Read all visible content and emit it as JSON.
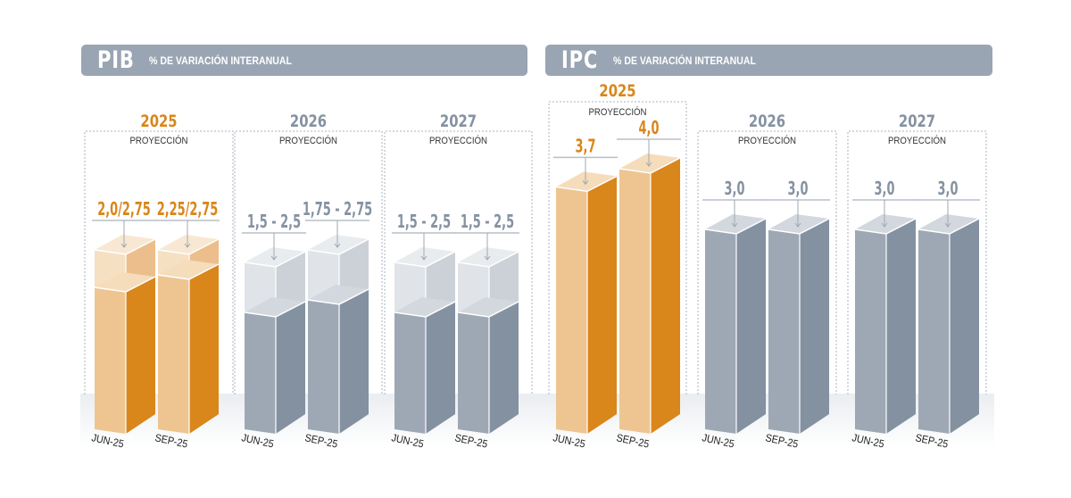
{
  "chart_data": [
    {
      "type": "bar",
      "title": "PIB",
      "subtitle": "% DE VARIACIÓN INTERANUAL",
      "panels": [
        {
          "year": "2025",
          "label": "PROYECCIÓN",
          "highlight": true,
          "categories": [
            "JUN-25",
            "SEP-25"
          ],
          "value_labels": [
            "2,0/2,75",
            "2,25/2,75"
          ],
          "range_low": [
            2.0,
            2.25
          ],
          "range_high": [
            2.75,
            2.75
          ]
        },
        {
          "year": "2026",
          "label": "PROYECCIÓN",
          "highlight": false,
          "categories": [
            "JUN-25",
            "SEP-25"
          ],
          "value_labels": [
            "1,5 - 2,5",
            "1,75 - 2,75"
          ],
          "range_low": [
            1.5,
            1.75
          ],
          "range_high": [
            2.5,
            2.75
          ]
        },
        {
          "year": "2027",
          "label": "PROYECCIÓN",
          "highlight": false,
          "categories": [
            "JUN-25",
            "SEP-25"
          ],
          "value_labels": [
            "1,5 - 2,5",
            "1,5 - 2,5"
          ],
          "range_low": [
            1.5,
            1.5
          ],
          "range_high": [
            2.5,
            2.5
          ]
        }
      ]
    },
    {
      "type": "bar",
      "title": "IPC",
      "subtitle": "% DE VARIACIÓN INTERANUAL",
      "panels": [
        {
          "year": "2025",
          "label": "PROYECCIÓN",
          "highlight": true,
          "categories": [
            "JUN-25",
            "SEP-25"
          ],
          "value_labels": [
            "3,7",
            "4,0"
          ],
          "values": [
            3.7,
            4.0
          ]
        },
        {
          "year": "2026",
          "label": "PROYECCIÓN",
          "highlight": false,
          "categories": [
            "JUN-25",
            "SEP-25"
          ],
          "value_labels": [
            "3,0",
            "3,0"
          ],
          "values": [
            3.0,
            3.0
          ]
        },
        {
          "year": "2027",
          "label": "PROYECCIÓN",
          "highlight": false,
          "categories": [
            "JUN-25",
            "SEP-25"
          ],
          "value_labels": [
            "3,0",
            "3,0"
          ],
          "values": [
            3.0,
            3.0
          ]
        }
      ]
    }
  ],
  "colors": {
    "header": "#9aa5b3",
    "orange_front": "#eec591",
    "orange_side": "#d9861b",
    "orange_top": "#f5dcbb",
    "orange_text": "#d9861b",
    "gray_front": "#9ea8b5",
    "gray_side": "#8391a1",
    "gray_top": "#d3d8de",
    "gray_text": "#8592a2",
    "ghost_front": "#d5dae0",
    "ghost_side": "#b9c1ca"
  }
}
